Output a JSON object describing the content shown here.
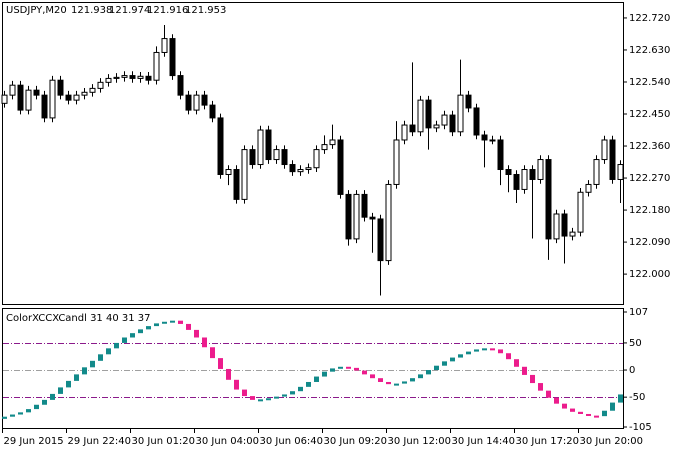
{
  "chart_data": [
    {
      "type": "candlestick",
      "symbol": "USDJPY,M20",
      "ohlc": [
        121.938,
        121.974,
        121.916,
        121.953
      ],
      "categories": [
        "29 Jun 2015",
        null,
        null,
        null,
        null,
        null,
        null,
        null,
        "29 Jun 22:40",
        null,
        null,
        null,
        null,
        null,
        null,
        null,
        "30 Jun 01:20",
        null,
        null,
        null,
        null,
        null,
        null,
        null,
        "30 Jun 04:00",
        null,
        null,
        null,
        null,
        null,
        null,
        null,
        "30 Jun 06:40",
        null,
        null,
        null,
        null,
        null,
        null,
        null,
        "30 Jun 09:20",
        null,
        null,
        null,
        null,
        null,
        null,
        null,
        "30 Jun 12:00",
        null,
        null,
        null,
        null,
        null,
        null,
        null,
        "30 Jun 14:40",
        null,
        null,
        null,
        null,
        null,
        null,
        null,
        "30 Jun 17:20",
        null,
        null,
        null,
        null,
        null,
        null,
        null,
        "30 Jun 20:00",
        null,
        null,
        null,
        null,
        null
      ],
      "open": [
        122.48,
        122.503,
        122.531,
        122.461,
        122.517,
        122.503,
        122.439,
        122.545,
        122.503,
        122.489,
        122.503,
        122.511,
        122.522,
        122.539,
        122.55,
        122.553,
        122.558,
        122.55,
        122.556,
        122.545,
        122.623,
        122.662,
        122.558,
        122.503,
        122.461,
        122.503,
        122.475,
        122.439,
        122.28,
        122.294,
        122.21,
        122.35,
        122.308,
        122.405,
        122.322,
        122.35,
        122.308,
        122.288,
        122.294,
        122.299,
        122.35,
        122.364,
        122.377,
        122.224,
        122.099,
        122.224,
        122.16,
        122.155,
        122.038,
        122.252,
        122.377,
        122.419,
        122.4,
        122.489,
        122.411,
        122.419,
        122.447,
        122.4,
        122.503,
        122.467,
        122.391,
        122.377,
        122.377,
        122.294,
        122.28,
        122.238,
        122.294,
        122.266,
        122.322,
        122.099,
        122.169,
        122.107,
        122.118,
        122.23,
        122.252,
        122.322,
        122.377,
        122.266
      ],
      "high": [
        122.515,
        122.543,
        122.543,
        122.529,
        122.529,
        122.515,
        122.557,
        122.557,
        122.515,
        122.515,
        122.523,
        122.534,
        122.551,
        122.562,
        122.565,
        122.57,
        122.57,
        122.568,
        122.568,
        122.64,
        122.7,
        122.674,
        122.57,
        122.515,
        122.515,
        122.515,
        122.487,
        122.451,
        122.306,
        122.306,
        122.362,
        122.362,
        122.417,
        122.417,
        122.362,
        122.362,
        122.32,
        122.306,
        122.311,
        122.362,
        122.39,
        122.42,
        122.389,
        122.236,
        122.236,
        122.236,
        122.172,
        122.167,
        122.264,
        122.43,
        122.431,
        122.595,
        122.501,
        122.501,
        122.431,
        122.459,
        122.459,
        122.603,
        122.515,
        122.479,
        122.403,
        122.389,
        122.389,
        122.306,
        122.292,
        122.306,
        122.306,
        122.334,
        122.334,
        122.181,
        122.181,
        122.13,
        122.242,
        122.264,
        122.334,
        122.389,
        122.389,
        122.32
      ],
      "low": [
        122.468,
        122.491,
        122.449,
        122.449,
        122.491,
        122.427,
        122.427,
        122.491,
        122.477,
        122.477,
        122.491,
        122.499,
        122.51,
        122.527,
        122.538,
        122.541,
        122.538,
        122.538,
        122.533,
        122.533,
        122.611,
        122.546,
        122.491,
        122.449,
        122.449,
        122.463,
        122.427,
        122.268,
        122.25,
        122.198,
        122.198,
        122.296,
        122.296,
        122.31,
        122.31,
        122.296,
        122.276,
        122.276,
        122.282,
        122.287,
        122.338,
        122.352,
        122.212,
        122.08,
        122.087,
        122.148,
        122.06,
        121.94,
        122.026,
        122.24,
        122.365,
        122.388,
        122.388,
        122.35,
        122.399,
        122.407,
        122.388,
        122.388,
        122.455,
        122.379,
        122.3,
        122.365,
        122.25,
        122.23,
        122.2,
        122.226,
        122.1,
        122.254,
        122.04,
        122.087,
        122.03,
        122.095,
        122.106,
        122.218,
        122.24,
        122.31,
        122.254,
        122.2
      ],
      "close": [
        122.503,
        122.531,
        122.461,
        122.517,
        122.503,
        122.439,
        122.545,
        122.503,
        122.489,
        122.503,
        122.511,
        122.522,
        122.539,
        122.55,
        122.553,
        122.558,
        122.55,
        122.556,
        122.545,
        122.623,
        122.662,
        122.558,
        122.503,
        122.461,
        122.503,
        122.475,
        122.439,
        122.28,
        122.294,
        122.21,
        122.35,
        122.308,
        122.405,
        122.322,
        122.35,
        122.308,
        122.288,
        122.294,
        122.299,
        122.35,
        122.364,
        122.377,
        122.224,
        122.099,
        122.224,
        122.16,
        122.155,
        122.038,
        122.252,
        122.377,
        122.419,
        122.4,
        122.489,
        122.411,
        122.419,
        122.447,
        122.4,
        122.503,
        122.467,
        122.391,
        122.377,
        122.377,
        122.294,
        122.28,
        122.238,
        122.294,
        122.266,
        122.322,
        122.099,
        122.169,
        122.107,
        122.118,
        122.23,
        122.252,
        122.322,
        122.377,
        122.266,
        122.308
      ],
      "colors": {
        "up": "#ffffff",
        "down": "#000000",
        "outline": "#000000"
      },
      "ylim": [
        121.916,
        122.762
      ],
      "yticks": [
        {
          "value": 122.72,
          "label": "122.720"
        },
        {
          "value": 122.63,
          "label": "122.630"
        },
        {
          "value": 122.54,
          "label": "122.540"
        },
        {
          "value": 122.45,
          "label": "122.450"
        },
        {
          "value": 122.36,
          "label": "122.360"
        },
        {
          "value": 122.27,
          "label": "122.270"
        },
        {
          "value": 122.18,
          "label": "122.180"
        },
        {
          "value": 122.09,
          "label": "122.090"
        },
        {
          "value": 122.0,
          "label": "122.000"
        }
      ]
    },
    {
      "type": "color-candles",
      "title": "ColorXCCXCandl 31 40 31 37",
      "open": [
        -90,
        -86,
        -82,
        -78,
        -72,
        -64,
        -55,
        -44,
        -32,
        -20,
        -8,
        5,
        17,
        29,
        40,
        50,
        60,
        68,
        75,
        81,
        86,
        89,
        91,
        85,
        74,
        60,
        42,
        22,
        2,
        -18,
        -36,
        -48,
        -55,
        -54,
        -52,
        -49,
        -45,
        -39,
        -31,
        -22,
        -12,
        -3,
        3,
        6,
        4,
        -1,
        -8,
        -15,
        -22,
        -26,
        -25,
        -21,
        -15,
        -8,
        0,
        8,
        16,
        23,
        29,
        34,
        38,
        40,
        38,
        31,
        20,
        6,
        -9,
        -24,
        -38,
        -51,
        -62,
        -71,
        -77,
        -81,
        -84,
        -85,
        -75,
        -60
      ],
      "close": [
        -86,
        -82,
        -78,
        -72,
        -64,
        -55,
        -44,
        -32,
        -20,
        -8,
        5,
        17,
        29,
        40,
        50,
        60,
        68,
        75,
        81,
        86,
        89,
        91,
        85,
        74,
        60,
        42,
        22,
        2,
        -18,
        -36,
        -48,
        -55,
        -54,
        -52,
        -49,
        -45,
        -39,
        -31,
        -22,
        -12,
        -3,
        3,
        6,
        4,
        -1,
        -8,
        -15,
        -22,
        -26,
        -25,
        -21,
        -15,
        -8,
        0,
        8,
        16,
        23,
        29,
        34,
        38,
        40,
        38,
        31,
        20,
        6,
        -9,
        -24,
        -38,
        -51,
        -62,
        -71,
        -77,
        -81,
        -84,
        -85,
        -75,
        -60,
        -45
      ],
      "colors": {
        "up": "#128a8a",
        "down": "#ec1c8c"
      },
      "levels": [
        {
          "value": 50,
          "color": "#8b1a8b"
        },
        {
          "value": 0,
          "color": "#a0a0a0"
        },
        {
          "value": -50,
          "color": "#8b1a8b"
        }
      ],
      "ylim": [
        -105,
        107
      ],
      "yticks": [
        107,
        50,
        0,
        -50,
        -105
      ]
    }
  ]
}
